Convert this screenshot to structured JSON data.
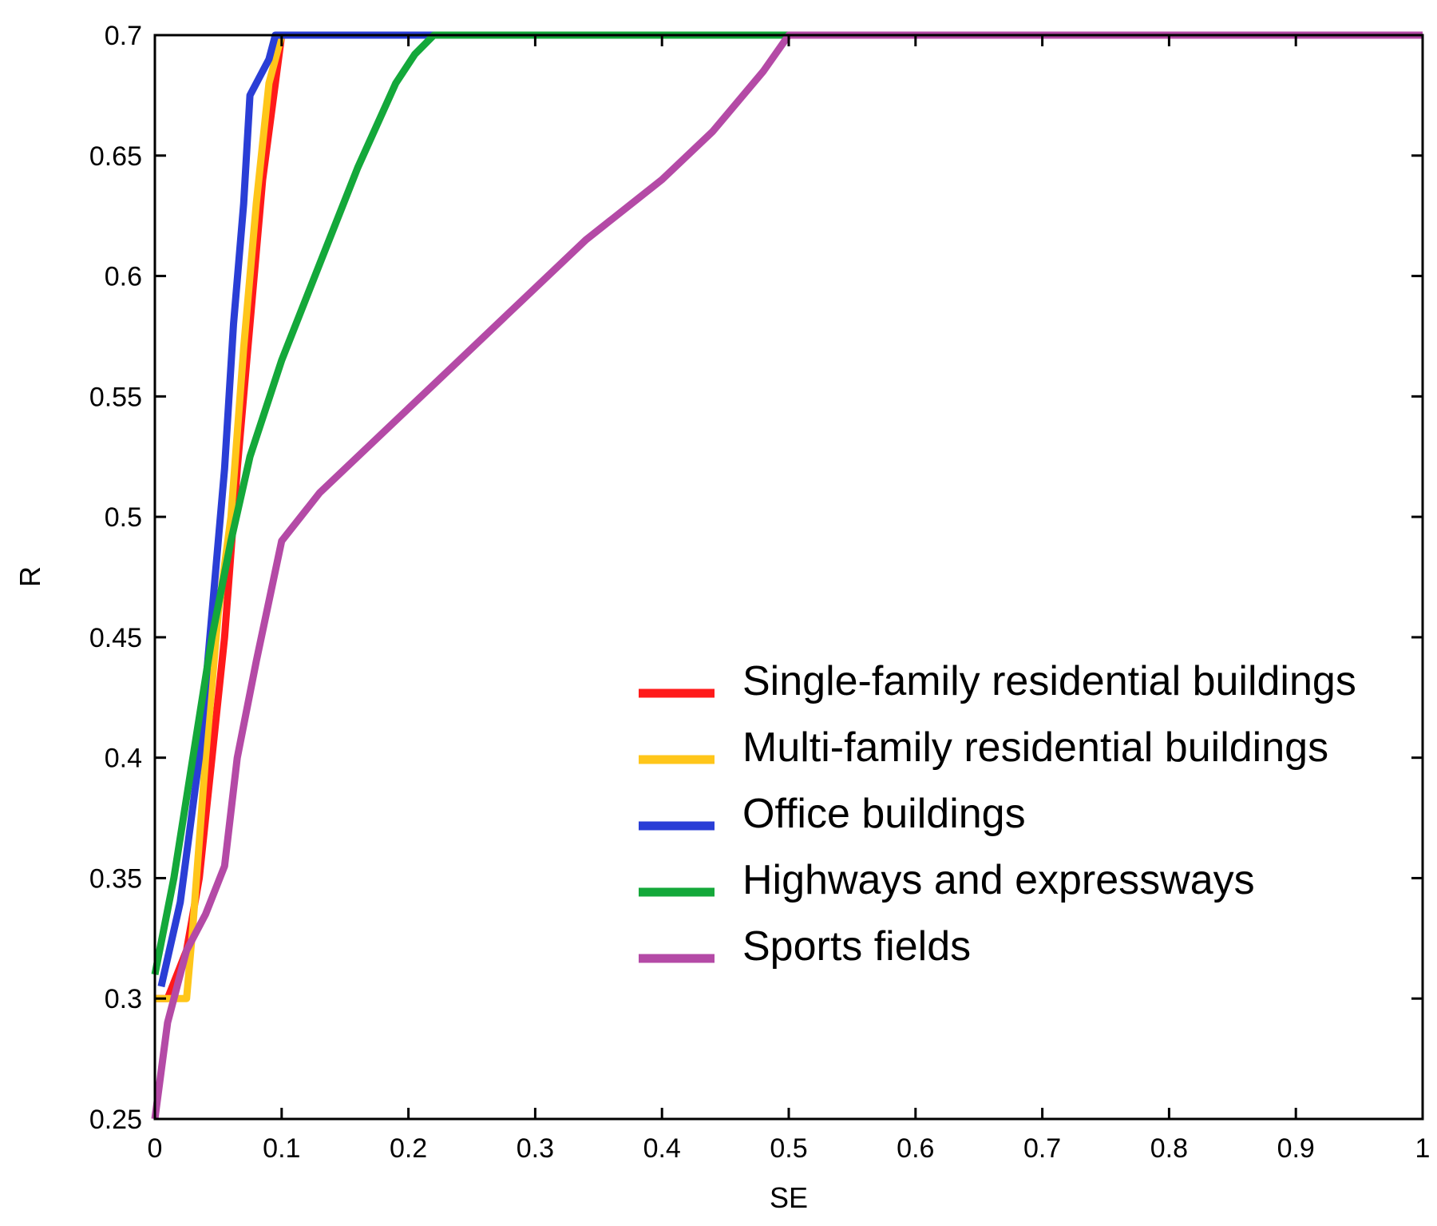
{
  "chart_data": {
    "type": "line",
    "title": "",
    "xlabel": "SE",
    "ylabel": "R",
    "xlim": [
      0,
      1
    ],
    "ylim": [
      0.25,
      0.7
    ],
    "xticks": [
      "0",
      "0.1",
      "0.2",
      "0.3",
      "0.4",
      "0.5",
      "0.6",
      "0.7",
      "0.8",
      "0.9",
      "1"
    ],
    "xtick_values": [
      0,
      0.1,
      0.2,
      0.3,
      0.4,
      0.5,
      0.6,
      0.7,
      0.8,
      0.9,
      1
    ],
    "yticks": [
      "0.25",
      "0.3",
      "0.35",
      "0.4",
      "0.45",
      "0.5",
      "0.55",
      "0.6",
      "0.65",
      "0.7"
    ],
    "ytick_values": [
      0.25,
      0.3,
      0.35,
      0.4,
      0.45,
      0.5,
      0.55,
      0.6,
      0.65,
      0.7
    ],
    "grid": false,
    "legend_position": "right",
    "series": [
      {
        "name": "Single-family residential buildings",
        "color": "#ff1a1a",
        "points": [
          [
            0,
            0.3
          ],
          [
            0.01,
            0.3
          ],
          [
            0.025,
            0.32
          ],
          [
            0.035,
            0.35
          ],
          [
            0.045,
            0.4
          ],
          [
            0.055,
            0.45
          ],
          [
            0.065,
            0.52
          ],
          [
            0.075,
            0.58
          ],
          [
            0.085,
            0.64
          ],
          [
            0.095,
            0.68
          ],
          [
            0.1,
            0.7
          ],
          [
            1,
            0.7
          ]
        ]
      },
      {
        "name": "Multi-family residential buildings",
        "color": "#ffc61a",
        "points": [
          [
            0,
            0.3
          ],
          [
            0.025,
            0.3
          ],
          [
            0.03,
            0.33
          ],
          [
            0.04,
            0.4
          ],
          [
            0.05,
            0.46
          ],
          [
            0.06,
            0.5
          ],
          [
            0.07,
            0.57
          ],
          [
            0.08,
            0.63
          ],
          [
            0.09,
            0.68
          ],
          [
            0.1,
            0.7
          ],
          [
            1,
            0.7
          ]
        ]
      },
      {
        "name": "Office buildings",
        "color": "#2a3ed6",
        "points": [
          [
            0.005,
            0.305
          ],
          [
            0.02,
            0.34
          ],
          [
            0.035,
            0.4
          ],
          [
            0.045,
            0.46
          ],
          [
            0.055,
            0.52
          ],
          [
            0.062,
            0.58
          ],
          [
            0.07,
            0.63
          ],
          [
            0.075,
            0.675
          ],
          [
            0.09,
            0.69
          ],
          [
            0.095,
            0.7
          ],
          [
            1,
            0.7
          ]
        ]
      },
      {
        "name": "Highways and expressways",
        "color": "#14a83a",
        "points": [
          [
            0,
            0.31
          ],
          [
            0.015,
            0.35
          ],
          [
            0.03,
            0.4
          ],
          [
            0.045,
            0.45
          ],
          [
            0.06,
            0.49
          ],
          [
            0.075,
            0.525
          ],
          [
            0.1,
            0.565
          ],
          [
            0.13,
            0.605
          ],
          [
            0.16,
            0.645
          ],
          [
            0.19,
            0.68
          ],
          [
            0.205,
            0.692
          ],
          [
            0.22,
            0.7
          ],
          [
            1,
            0.7
          ]
        ]
      },
      {
        "name": "Sports fields",
        "color": "#b44aa6",
        "points": [
          [
            0,
            0.25
          ],
          [
            0.01,
            0.29
          ],
          [
            0.025,
            0.32
          ],
          [
            0.04,
            0.335
          ],
          [
            0.055,
            0.355
          ],
          [
            0.065,
            0.4
          ],
          [
            0.08,
            0.44
          ],
          [
            0.1,
            0.49
          ],
          [
            0.13,
            0.51
          ],
          [
            0.17,
            0.53
          ],
          [
            0.22,
            0.555
          ],
          [
            0.28,
            0.585
          ],
          [
            0.34,
            0.615
          ],
          [
            0.4,
            0.64
          ],
          [
            0.44,
            0.66
          ],
          [
            0.48,
            0.685
          ],
          [
            0.5,
            0.7
          ],
          [
            1,
            0.7
          ]
        ]
      }
    ]
  }
}
